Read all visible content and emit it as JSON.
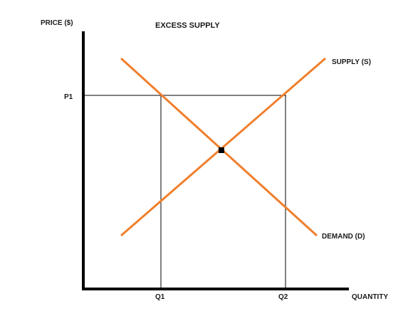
{
  "diagram": {
    "title": "EXCESS SUPPLY",
    "y_axis_label": "PRICE ($)",
    "x_axis_label": "QUANTITY",
    "price_label": "P1",
    "quantity_labels": [
      "Q1",
      "Q2"
    ],
    "supply_label": "SUPPLY (S)",
    "demand_label": "DEMAND (D)",
    "colors": {
      "curves": "#f07f2c",
      "axes": "#000000",
      "guides": "#000000",
      "equilibrium_point": "#000000"
    }
  }
}
